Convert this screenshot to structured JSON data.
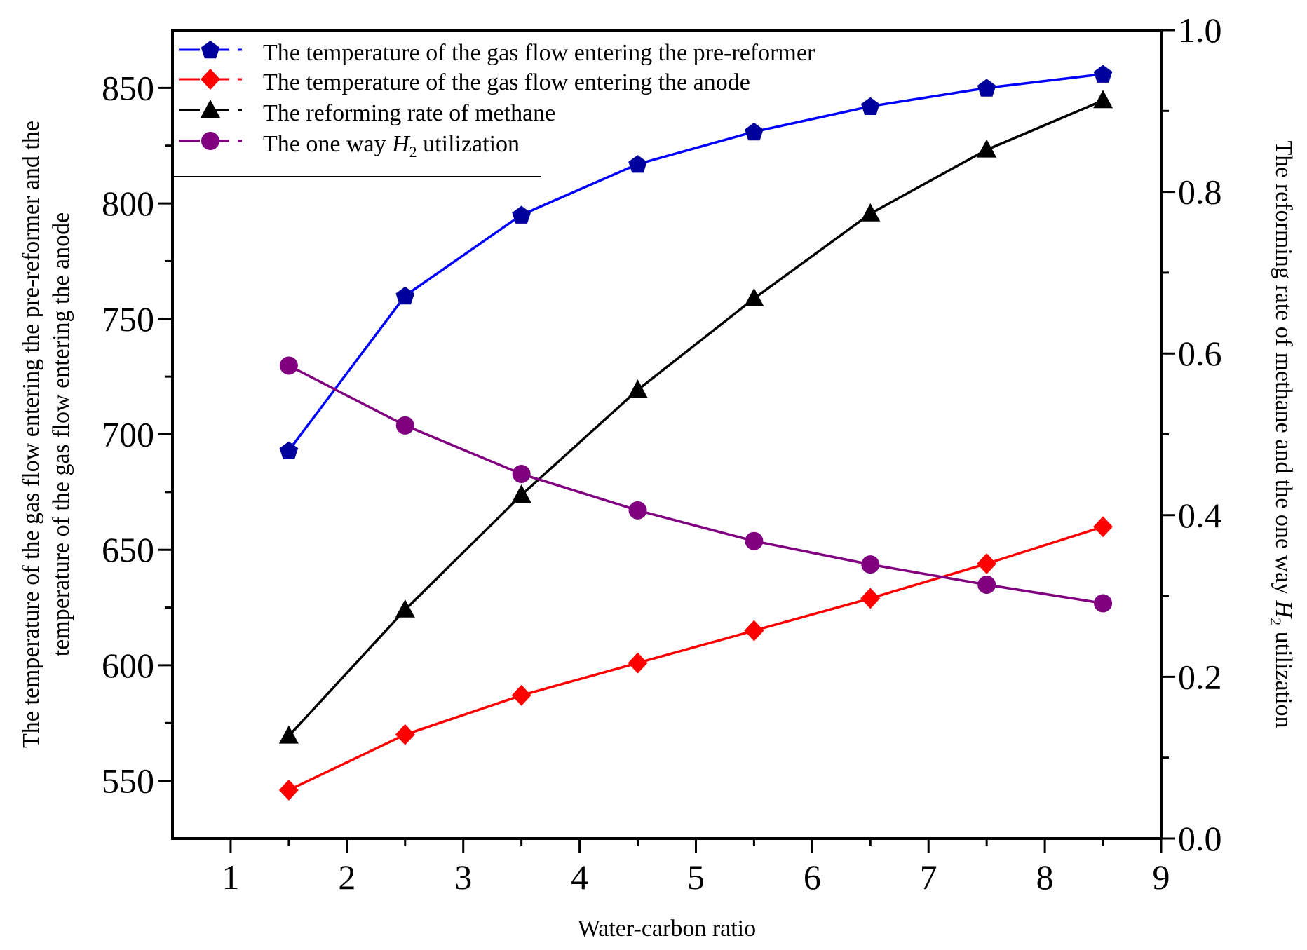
{
  "chart_data": {
    "type": "line",
    "title": "",
    "xlabel": "Water-carbon ratio",
    "ylabel_left": "The temperature of the gas flow entering the pre-reformer and the temperature of the gas flow entering the anode",
    "ylabel_right": {
      "before": "The reforming rate of methane and the one way ",
      "italic": "H",
      "subscript": "2",
      "after": " utilization"
    },
    "xlim": [
      0.5,
      9
    ],
    "ylim_left": [
      525,
      875
    ],
    "ylim_right": [
      0.0,
      1.0
    ],
    "x_ticks": [
      1,
      2,
      3,
      4,
      5,
      6,
      7,
      8,
      9
    ],
    "y_left_ticks": [
      550,
      600,
      650,
      700,
      750,
      800,
      850
    ],
    "y_right_ticks": [
      "0.0",
      "0.2",
      "0.4",
      "0.6",
      "0.8",
      "1.0"
    ],
    "x": [
      1.5,
      2.5,
      3.5,
      4.5,
      5.5,
      6.5,
      7.5,
      8.5
    ],
    "legend_position": "top-left",
    "series": [
      {
        "name": "The temperature of the gas flow entering the pre-reformer",
        "axis": "left",
        "color": "#0000ff",
        "marker_color": "#00009c",
        "marker": "pentagon",
        "values": [
          693,
          760,
          795,
          817,
          831,
          842,
          850,
          856
        ]
      },
      {
        "name": "The temperature of the gas flow entering the anode",
        "axis": "left",
        "color": "#ff0000",
        "marker_color": "#ff0000",
        "marker": "diamond",
        "values": [
          546,
          570,
          587,
          601,
          615,
          629,
          644,
          660
        ]
      },
      {
        "name": "The reforming rate of methane",
        "axis": "right",
        "color": "#000000",
        "marker_color": "#000000",
        "marker": "triangle",
        "values": [
          0.127,
          0.283,
          0.425,
          0.555,
          0.668,
          0.773,
          0.852,
          0.913
        ]
      },
      {
        "name": "The one way H2 utilization",
        "axis": "right",
        "color": "#800080",
        "marker_color": "#800080",
        "marker": "circle",
        "values": [
          0.585,
          0.511,
          0.451,
          0.406,
          0.368,
          0.339,
          0.314,
          0.291
        ]
      }
    ],
    "legend": [
      {
        "text": "The temperature of the gas flow entering the pre-reformer"
      },
      {
        "text": "The temperature of the gas flow entering the anode"
      },
      {
        "text": "The reforming rate of methane"
      },
      {
        "before": "The one way ",
        "italic": "H",
        "subscript": "2",
        "after": " utilization"
      }
    ]
  }
}
